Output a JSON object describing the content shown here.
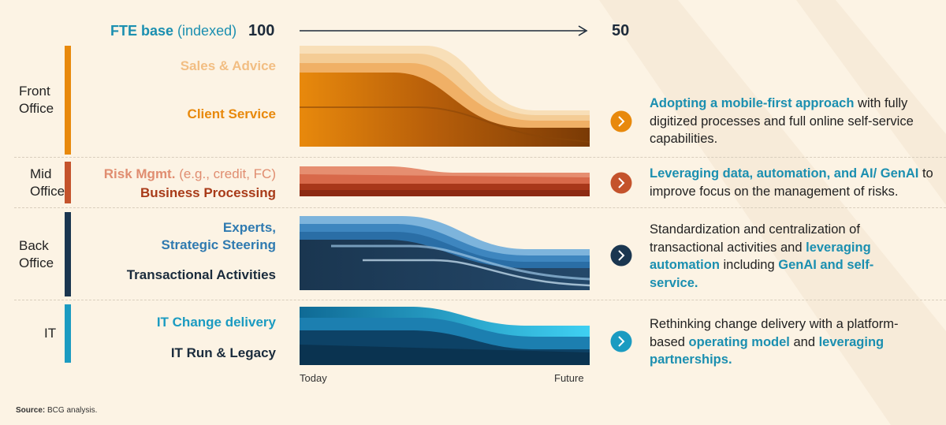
{
  "header": {
    "fte_label_bold": "FTE base",
    "fte_label_rest": "(indexed)",
    "start_value": "100",
    "end_value": "50"
  },
  "sections": [
    {
      "name_line1": "Front",
      "name_line2": "Office",
      "rows": [
        "Sales & Advice",
        "Client Service"
      ],
      "description": [
        {
          "text": "Adopting a mobile-first approach",
          "bold": true
        },
        {
          "text": " with fully digitized processes and full online self-service capabilities.",
          "bold": false
        }
      ]
    },
    {
      "name_line1": "Mid",
      "name_line2": "Office",
      "rows": [
        "Risk Mgmt.",
        "(e.g., credit, FC)",
        "Business Processing"
      ],
      "description": [
        {
          "text": "Leveraging data, automation, and AI/ GenAI",
          "bold": true
        },
        {
          "text": " to improve focus on the management of risks.",
          "bold": false
        }
      ]
    },
    {
      "name_line1": "Back",
      "name_line2": "Office",
      "rows": [
        "Experts,",
        "Strategic Steering",
        "Transactional Activities"
      ],
      "description": [
        {
          "text": "Standardization and centralization of transactional activities and ",
          "bold": false
        },
        {
          "text": "leveraging automation",
          "bold": true
        },
        {
          "text": " including ",
          "bold": false
        },
        {
          "text": "GenAI and self-service.",
          "bold": true
        }
      ]
    },
    {
      "name_line1": "IT",
      "name_line2": "",
      "rows": [
        "IT Change delivery",
        "IT Run & Legacy"
      ],
      "description": [
        {
          "text": "Rethinking change delivery with a platform-based ",
          "bold": false
        },
        {
          "text": "operating model",
          "bold": true
        },
        {
          "text": " and ",
          "bold": false
        },
        {
          "text": "leveraging partnerships.",
          "bold": true
        }
      ]
    }
  ],
  "axis": {
    "left": "Today",
    "right": "Future"
  },
  "source": {
    "bold": "Source:",
    "text": "BCG analysis."
  },
  "colors": {
    "front": "#e8890c",
    "mid": "#c4532c",
    "back": "#1a3650",
    "it": "#1b9bc1",
    "highlight": "#1b8fb0",
    "background": "#fcf3e4"
  }
}
